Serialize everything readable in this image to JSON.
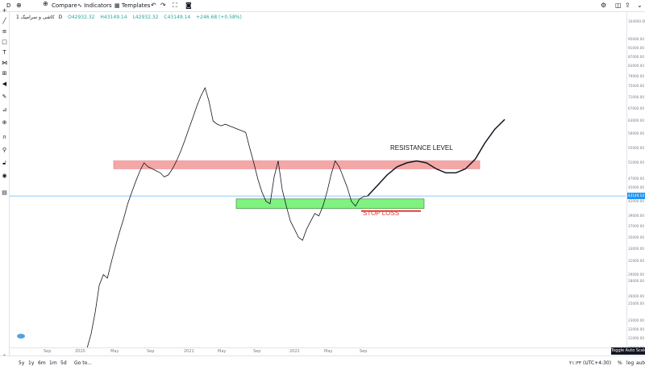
{
  "header": {
    "symbol_short": "D",
    "compare_label": "Compare",
    "indicators_label": "Indicators",
    "templates_label": "Templates"
  },
  "legend": {
    "name": "کاشی و سرامیک",
    "interval": "1D",
    "open": "O42932.32",
    "high": "H43149.14",
    "low": "L42932.32",
    "close": "C43149.14",
    "change": "+246.68 (+0.58%)"
  },
  "price_axis": {
    "labels": [
      "104000.00",
      "95000.00",
      "91000.00",
      "87000.00",
      "83000.00",
      "79000.00",
      "75000.00",
      "71000.00",
      "67000.00",
      "63000.00",
      "59000.00",
      "55000.00",
      "51000.00",
      "47000.00",
      "45000.00",
      "42000.00",
      "39000.00",
      "37000.00",
      "35000.00",
      "33000.00",
      "31000.00",
      "29000.00",
      "28000.00",
      "26000.00",
      "25000.00",
      "23000.00",
      "22000.00",
      "21000.00",
      "20000.00"
    ],
    "current": "43149.14"
  },
  "time_axis": {
    "labels": [
      "Sep",
      "2020",
      "May",
      "Sep",
      "2021",
      "May",
      "Sep",
      "2022",
      "May",
      "Sep"
    ]
  },
  "annotations": {
    "resistance": "RESISTANCE LEVEL",
    "stop_loss": "STOP LOSS"
  },
  "bottom": {
    "ranges": [
      "5y",
      "1y",
      "6m",
      "1m",
      "5d"
    ],
    "goto": "Go to...",
    "time": "۲۱:۳۳",
    "timezone": "(UTC+4:30)",
    "percent": "%",
    "log": "log",
    "auto": "auto",
    "tooltip": "Toggle Auto Scale"
  },
  "colors": {
    "up": "#26a69a",
    "current_price": "#2196f3",
    "resistance_fill": "#f4a7a7",
    "support_fill": "#7ff27f",
    "stop_loss_line": "#e53935",
    "stop_loss_text": "#e53935"
  },
  "chart_data": {
    "type": "line",
    "series": [
      {
        "values": [
          20000,
          21500,
          24000,
          27500,
          29000,
          28500,
          31000,
          33500,
          36000,
          38500,
          41500,
          44000,
          46500,
          49000,
          51000,
          50000,
          49500,
          49000,
          48500,
          47500,
          48000,
          49500,
          51500,
          54000,
          57000,
          60500,
          64000,
          68000,
          71500,
          74500,
          69500,
          63000,
          62000,
          61500,
          62000,
          61500,
          61000,
          60500,
          60000,
          59500,
          55000,
          51000,
          47000,
          44000,
          42000,
          41500,
          47500,
          51500,
          44500,
          41000,
          38000,
          36500,
          35000,
          34500,
          36500,
          38000,
          39500,
          39000,
          41000,
          44000,
          48000,
          51500,
          50000,
          47500,
          45000,
          42000,
          41000,
          42500,
          43000,
          43149
        ]
      }
    ],
    "projection": [
      43149,
      45500,
      48000,
      50000,
      51000,
      51500,
      51000,
      49500,
      48500,
      48500,
      49500,
      52000,
      56500,
      60500,
      63500
    ],
    "resistance_zone": [
      49500,
      51500
    ],
    "support_zone": [
      40500,
      42500
    ],
    "stop_loss": 40000,
    "ylim": [
      20000,
      104000
    ]
  }
}
